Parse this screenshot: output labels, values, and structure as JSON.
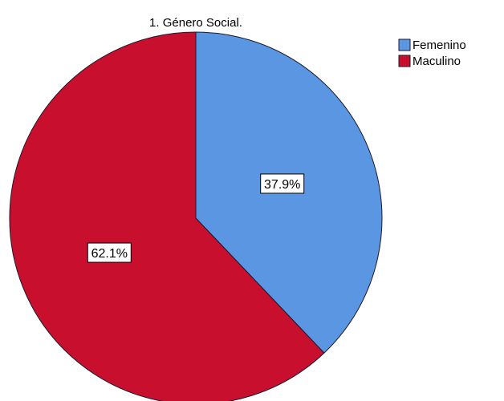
{
  "colors": {
    "background": "#ffffff",
    "femenino": "#5b96e3",
    "masculino": "#c8102e",
    "outline": "#1a1a2e"
  },
  "chart_data": {
    "type": "pie",
    "title": "1. Género Social.",
    "slices": [
      {
        "name": "Femenino",
        "value": 37.9,
        "label": "37.9%",
        "color": "#5b96e3"
      },
      {
        "name": "Maculino",
        "value": 62.1,
        "label": "62.1%",
        "color": "#c8102e"
      }
    ],
    "start_angle_deg": 0,
    "direction": "clockwise",
    "legend": {
      "position": "top-right",
      "entries": [
        "Femenino",
        "Maculino"
      ]
    }
  }
}
